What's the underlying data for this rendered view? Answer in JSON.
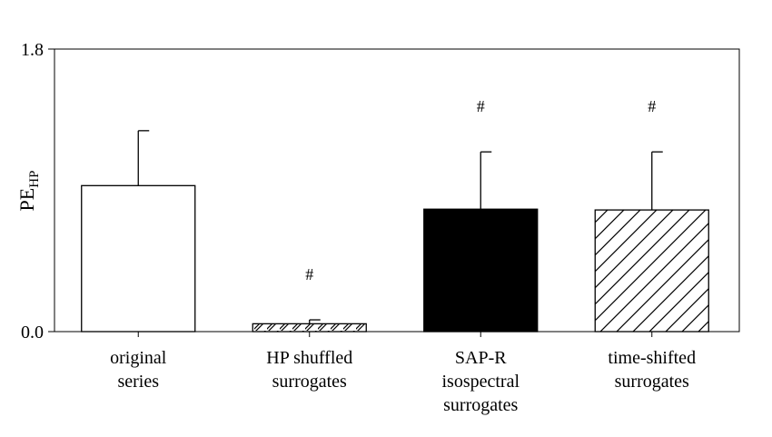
{
  "chart_data": {
    "type": "bar",
    "ylabel": {
      "main": "PE",
      "subscript": "HP"
    },
    "ylim": [
      0,
      1.8
    ],
    "yticks": [
      "0.0",
      "1.8"
    ],
    "grid": false,
    "categories": [
      {
        "lines": [
          "original",
          "series"
        ]
      },
      {
        "lines": [
          "HP shuffled",
          "surrogates"
        ]
      },
      {
        "lines": [
          "SAP-R",
          "isospectral",
          "surrogates"
        ]
      },
      {
        "lines": [
          "time-shifted",
          "surrogates"
        ]
      }
    ],
    "values": [
      0.93,
      0.05,
      0.78,
      0.775
    ],
    "errors": [
      0.35,
      0.025,
      0.365,
      0.37
    ],
    "fills": [
      "white",
      "hatch-sparse",
      "black",
      "hatch-dense"
    ],
    "markers": [
      "",
      "#",
      "#",
      "#"
    ],
    "colors": {
      "bar_stroke": "#000000",
      "solid_fill": "#000000",
      "axis": "#000000"
    }
  }
}
